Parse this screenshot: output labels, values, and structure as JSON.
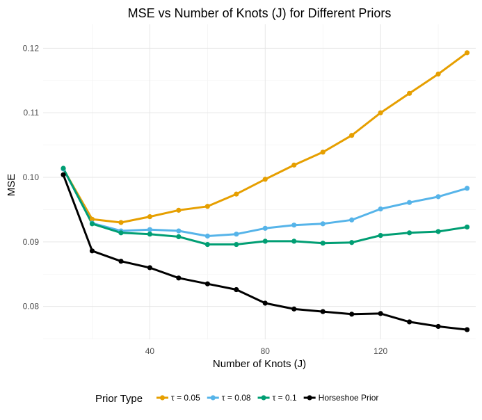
{
  "chart_data": {
    "type": "line",
    "title": "MSE vs Number of Knots (J) for Different Priors",
    "xlabel": "Number of Knots (J)",
    "ylabel": "MSE",
    "x": [
      10,
      20,
      30,
      40,
      50,
      60,
      70,
      80,
      90,
      100,
      110,
      120,
      130,
      140,
      150
    ],
    "xlim": [
      3,
      153
    ],
    "ylim": [
      0.0749,
      0.1237
    ],
    "x_ticks": [
      40,
      80,
      120
    ],
    "x_tick_labels": [
      "40",
      "80",
      "120"
    ],
    "y_ticks": [
      0.08,
      0.09,
      0.1,
      0.11,
      0.12
    ],
    "y_tick_labels": [
      "0.08",
      "0.09",
      "0.10",
      "0.11",
      "0.12"
    ],
    "grid": true,
    "legend_position": "bottom",
    "legend_title": "Prior Type",
    "series": [
      {
        "name": "τ = 0.05",
        "color": "#E69F00",
        "values": [
          0.1013,
          0.0935,
          0.093,
          0.0939,
          0.0949,
          0.0955,
          0.0974,
          0.0997,
          0.1019,
          0.1039,
          0.1065,
          0.11,
          0.113,
          0.116,
          0.1193
        ]
      },
      {
        "name": "τ = 0.08",
        "color": "#56B4E9",
        "values": [
          0.1013,
          0.0929,
          0.0917,
          0.0919,
          0.0917,
          0.0909,
          0.0912,
          0.0921,
          0.0926,
          0.0928,
          0.0934,
          0.0951,
          0.0961,
          0.097,
          0.0983
        ]
      },
      {
        "name": "τ = 0.1",
        "color": "#009E73",
        "values": [
          0.1014,
          0.0928,
          0.0914,
          0.0912,
          0.0908,
          0.0896,
          0.0896,
          0.0901,
          0.0901,
          0.0898,
          0.0899,
          0.091,
          0.0914,
          0.0916,
          0.0923
        ]
      },
      {
        "name": "Horseshoe Prior",
        "color": "#000000",
        "values": [
          0.1004,
          0.0886,
          0.087,
          0.086,
          0.0844,
          0.0835,
          0.0826,
          0.0805,
          0.0796,
          0.0792,
          0.0788,
          0.0789,
          0.0776,
          0.0769,
          0.0764
        ]
      }
    ]
  }
}
